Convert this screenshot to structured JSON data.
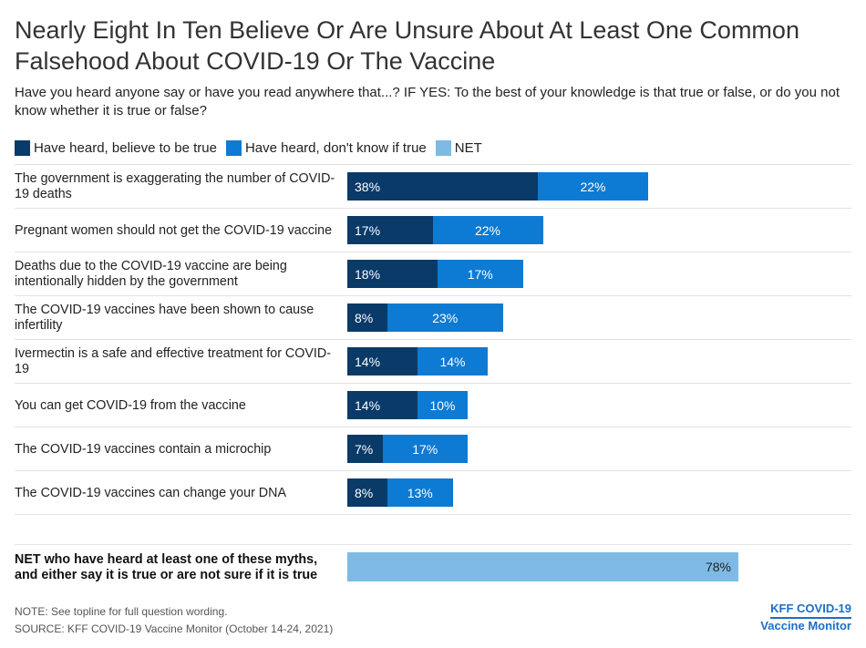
{
  "title": "Nearly Eight In Ten Believe Or Are Unsure About At Least One Common Falsehood About COVID-19 Or The Vaccine",
  "subtitle": "Have you heard anyone say or have you read anywhere that...? IF YES: To the best of your knowledge is that true or false, or do you not know whether it is true or false?",
  "legend": [
    {
      "label": "Have heard, believe to be true",
      "color": "#0a3a68"
    },
    {
      "label": "Have heard, don't know if true",
      "color": "#0d7ad3"
    },
    {
      "label": "NET",
      "color": "#7ebae5"
    }
  ],
  "chart_data": {
    "type": "bar",
    "orientation": "horizontal",
    "stacked": true,
    "categories": [
      "The government is exaggerating the number of COVID-19 deaths",
      "Pregnant women should not get the COVID-19 vaccine",
      "Deaths due to the COVID-19 vaccine are being intentionally hidden by the government",
      "The COVID-19 vaccines have been shown to cause infertility",
      "Ivermectin is a safe and effective treatment for COVID-19",
      "You can get COVID-19 from the vaccine",
      "The COVID-19 vaccines contain a microchip",
      "The COVID-19 vaccines can change your DNA"
    ],
    "series": [
      {
        "name": "Have heard, believe to be true",
        "values": [
          38,
          17,
          18,
          8,
          14,
          14,
          7,
          8
        ]
      },
      {
        "name": "Have heard, don't know if true",
        "values": [
          22,
          22,
          17,
          23,
          14,
          10,
          17,
          13
        ]
      }
    ],
    "value_suffix": "%",
    "net": {
      "label": "NET who have heard at least one of these myths, and either say it is true or are not sure if it is true",
      "value": 78,
      "series_name": "NET"
    }
  },
  "footer": {
    "note": "NOTE: See topline for full question wording.",
    "source": "SOURCE: KFF COVID-19 Vaccine Monitor (October 14-24, 2021)",
    "brand_line1": "KFF COVID-19",
    "brand_line2": "Vaccine Monitor"
  }
}
